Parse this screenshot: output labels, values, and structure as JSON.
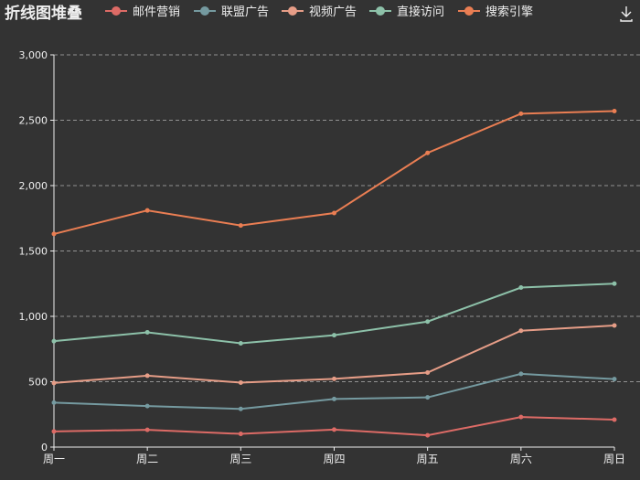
{
  "colors": {
    "background": "#333333",
    "text": "#eeeeee",
    "series": [
      "#dd6b66",
      "#759aa0",
      "#e69d87",
      "#8dc1a9",
      "#ea7e53"
    ]
  },
  "toolbar": {
    "download_icon": "download-icon"
  },
  "chart_data": {
    "type": "line",
    "title": "折线图堆叠",
    "legend_position": "top",
    "stacked": true,
    "categories": [
      "周一",
      "周二",
      "周三",
      "周四",
      "周五",
      "周六",
      "周日"
    ],
    "ylim": [
      0,
      3000
    ],
    "yticks": [
      0,
      500,
      1000,
      1500,
      2000,
      2500,
      3000
    ],
    "ytick_labels": [
      "0",
      "500",
      "1,000",
      "1,500",
      "2,000",
      "2,500",
      "3,000"
    ],
    "grid": true,
    "series": [
      {
        "name": "邮件营销",
        "values": [
          120,
          132,
          101,
          134,
          90,
          230,
          210
        ]
      },
      {
        "name": "联盟广告",
        "values": [
          220,
          182,
          191,
          234,
          290,
          330,
          310
        ]
      },
      {
        "name": "视频广告",
        "values": [
          150,
          232,
          201,
          154,
          190,
          330,
          410
        ]
      },
      {
        "name": "直接访问",
        "values": [
          320,
          332,
          301,
          334,
          390,
          330,
          320
        ]
      },
      {
        "name": "搜索引擎",
        "values": [
          820,
          932,
          901,
          934,
          1290,
          1330,
          1320
        ]
      }
    ]
  }
}
